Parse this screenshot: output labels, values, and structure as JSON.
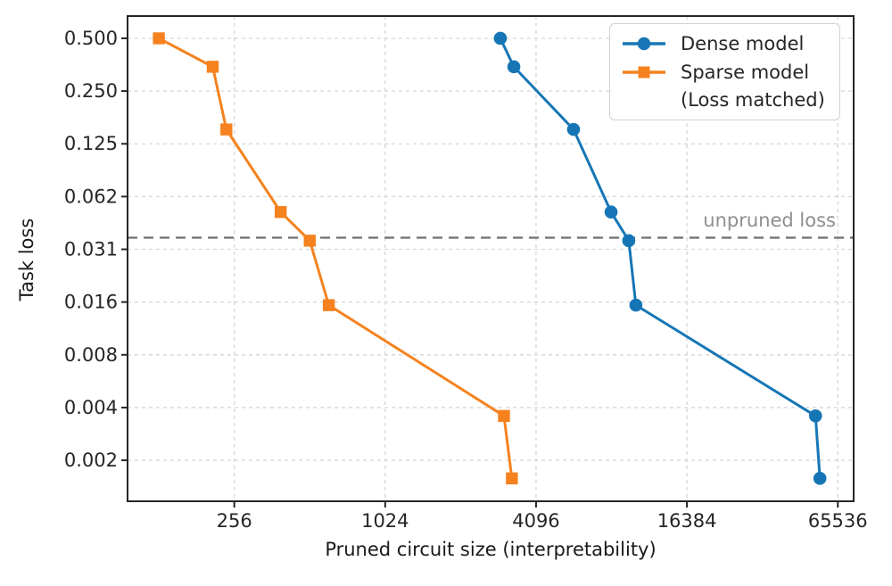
{
  "chart_data": {
    "type": "line",
    "title": "",
    "xlabel": "Pruned circuit size (interpretability)",
    "ylabel": "Task loss",
    "x_scale": "log2",
    "y_scale": "log2",
    "xlim": [
      96,
      75800
    ],
    "ylim": [
      0.00114,
      0.67
    ],
    "grid": true,
    "legend_position": "upper right",
    "x_ticks": [
      {
        "value": 256,
        "label": "256"
      },
      {
        "value": 1024,
        "label": "1024"
      },
      {
        "value": 4096,
        "label": "4096"
      },
      {
        "value": 16384,
        "label": "16384"
      },
      {
        "value": 65536,
        "label": "65536"
      }
    ],
    "y_ticks": [
      {
        "value": 0.5,
        "label": "0.500"
      },
      {
        "value": 0.25,
        "label": "0.250"
      },
      {
        "value": 0.125,
        "label": "0.125"
      },
      {
        "value": 0.0625,
        "label": "0.062"
      },
      {
        "value": 0.03125,
        "label": "0.031"
      },
      {
        "value": 0.015625,
        "label": "0.016"
      },
      {
        "value": 0.0078125,
        "label": "0.008"
      },
      {
        "value": 0.00390625,
        "label": "0.004"
      },
      {
        "value": 0.001953125,
        "label": "0.002"
      }
    ],
    "annotation": {
      "text": "unpruned loss",
      "y": 0.0364,
      "line_color": "#6f6f6f",
      "text_color": "#8e8e8e"
    },
    "series": [
      {
        "id": "dense-model",
        "name": "Dense model",
        "color": "#1676b5",
        "marker": "circle",
        "points": [
          [
            2950,
            0.5
          ],
          [
            3340,
            0.344
          ],
          [
            5780,
            0.151
          ],
          [
            8160,
            0.051
          ],
          [
            9600,
            0.035
          ],
          [
            10250,
            0.015
          ],
          [
            53400,
            0.0035
          ],
          [
            55600,
            0.00154
          ]
        ]
      },
      {
        "id": "sparse-model",
        "name": "Sparse model",
        "name_line2": "(Loss matched)",
        "color": "#f5821f",
        "marker": "square",
        "points": [
          [
            128,
            0.5
          ],
          [
            210,
            0.344
          ],
          [
            238,
            0.151
          ],
          [
            392,
            0.051
          ],
          [
            512,
            0.035
          ],
          [
            610,
            0.015
          ],
          [
            3050,
            0.0035
          ],
          [
            3280,
            0.00154
          ]
        ]
      }
    ],
    "style": {
      "grid_color": "#d6d6d6",
      "spine_color": "#262626",
      "tick_label_color": "#262626"
    }
  },
  "legend": {
    "rows": [
      {
        "label": "Dense model"
      },
      {
        "label": "Sparse model"
      },
      {
        "label": "(Loss matched)"
      }
    ]
  }
}
